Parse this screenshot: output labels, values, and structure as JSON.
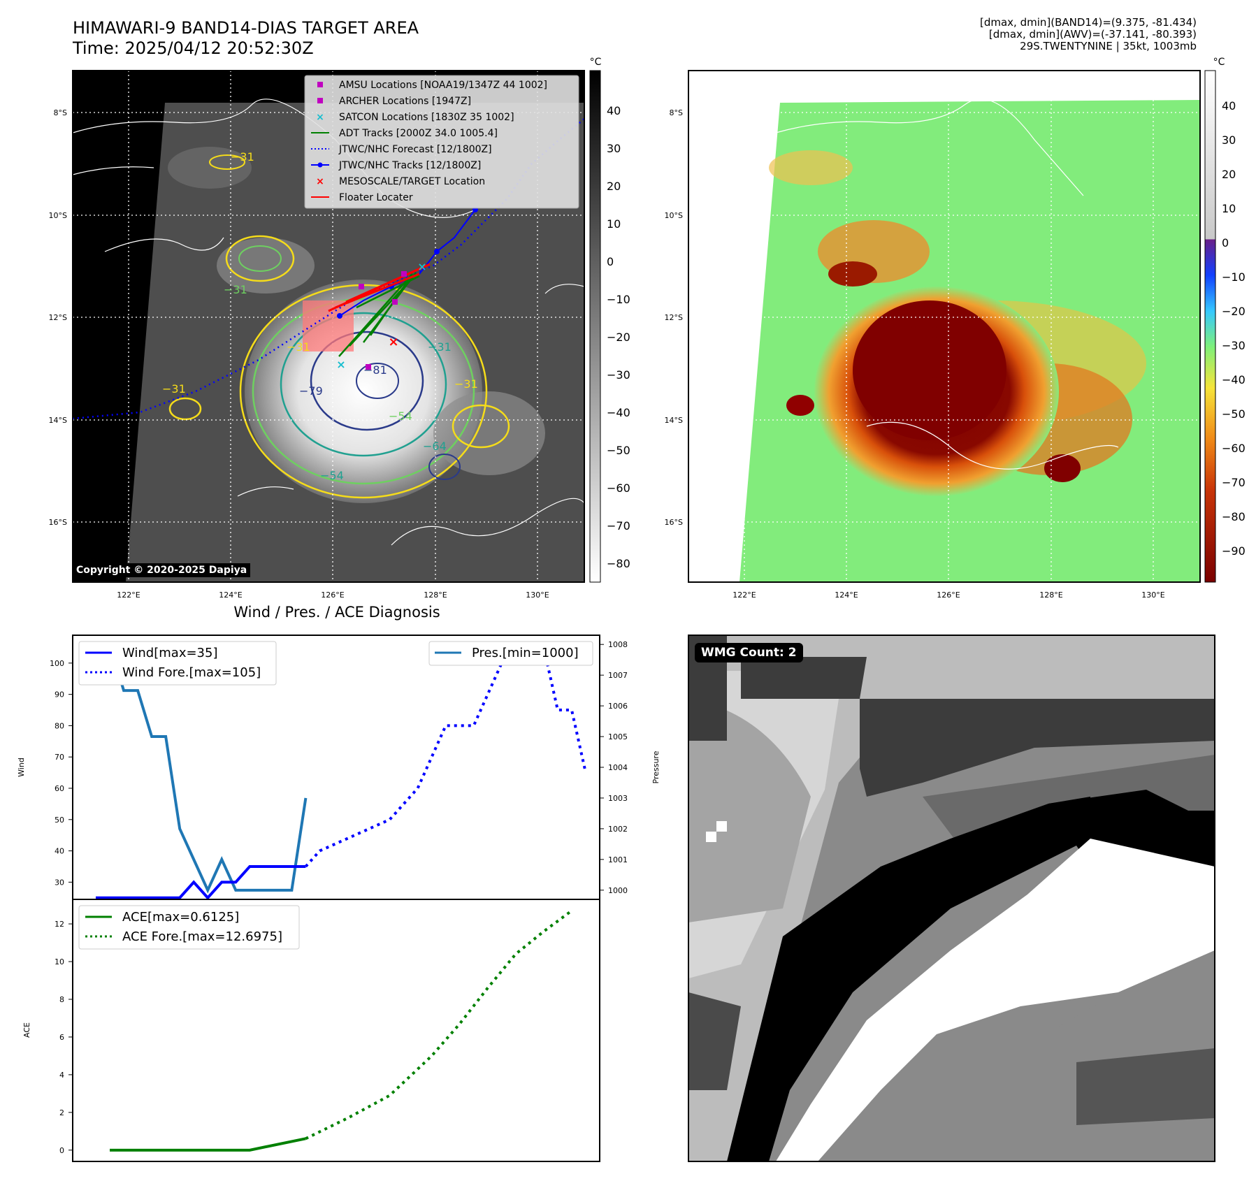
{
  "header": {
    "title_line1": "HIMAWARI-9 BAND14-DIAS TARGET AREA",
    "title_line2": "Time: 2025/04/12 20:52:30Z",
    "info_line1": "[dmax, dmin](BAND14)=(9.375, -81.434)",
    "info_line2": "[dmax, dmin](AWV)=(-37.141, -80.393)",
    "info_line3": "29S.TWENTYNINE | 35kt, 1003mb"
  },
  "colors": {
    "wind": "#0000ff",
    "pressure": "#1f77b4",
    "ace": "#008000",
    "satcon": "#17becf",
    "amsu": "#c000c0",
    "forecast": "#0000ff",
    "target": "#ff0000"
  },
  "map_left": {
    "lat_labels": [
      "8°S",
      "10°S",
      "12°S",
      "14°S",
      "16°S"
    ],
    "lon_labels": [
      "122°E",
      "124°E",
      "126°E",
      "128°E",
      "130°E"
    ],
    "colorbar_unit": "°C",
    "colorbar_ticks": [
      "40",
      "30",
      "20",
      "10",
      "0",
      "−10",
      "−20",
      "−30",
      "−40",
      "−50",
      "−60",
      "−70",
      "−80"
    ],
    "contour_labels": [
      "−31",
      "−31",
      "−31",
      "−31",
      "−31",
      "−54",
      "−64",
      "−79",
      "−81",
      "−31",
      "−54"
    ],
    "legend": [
      {
        "label": "AMSU Locations [NOAA19/1347Z 44 1002]",
        "icon": "square-marker",
        "color": "#c000c0"
      },
      {
        "label": "ARCHER Locations [1947Z]",
        "icon": "square-marker",
        "color": "#c000c0"
      },
      {
        "label": "SATCON Locations [1830Z 35 1002]",
        "icon": "x-marker",
        "color": "#17becf"
      },
      {
        "label": "ADT Tracks [2000Z 34.0 1005.4]",
        "icon": "solid-line",
        "color": "#008000"
      },
      {
        "label": "JTWC/NHC Forecast [12/1800Z]",
        "icon": "dotted-line",
        "color": "#0000ff"
      },
      {
        "label": "JTWC/NHC Tracks [12/1800Z]",
        "icon": "line-dot",
        "color": "#0000ff"
      },
      {
        "label": "MESOSCALE/TARGET Location",
        "icon": "x-marker",
        "color": "#ff0000"
      },
      {
        "label": "Floater Locater",
        "icon": "solid-line",
        "color": "#ff0000"
      }
    ],
    "copyright": "Copyright © 2020-2025 Dapiya"
  },
  "map_right": {
    "lat_labels": [
      "8°S",
      "10°S",
      "12°S",
      "14°S",
      "16°S"
    ],
    "lon_labels": [
      "122°E",
      "124°E",
      "126°E",
      "128°E",
      "130°E"
    ],
    "colorbar_unit": "°C",
    "colorbar_ticks": [
      "40",
      "30",
      "20",
      "10",
      "0",
      "−10",
      "−20",
      "−30",
      "−40",
      "−50",
      "−60",
      "−70",
      "−80",
      "−90"
    ]
  },
  "diagnosis": {
    "title": "Wind / Pres. / ACE Diagnosis",
    "wind_axis_label": "Wind",
    "pressure_axis_label": "Pressure",
    "ace_axis_label": "ACE",
    "wind_legend": [
      "Wind[max=35]",
      "Wind Fore.[max=105]"
    ],
    "pressure_legend": "Pres.[min=1000]",
    "ace_legend": [
      "ACE[max=0.6125]",
      "ACE Fore.[max=12.6975]"
    ]
  },
  "wmg": {
    "label": "WMG Count: 2"
  },
  "chart_data": [
    {
      "type": "line",
      "name": "wind_pressure",
      "x": [
        0,
        1,
        2,
        3,
        4,
        5,
        6,
        7,
        8,
        9,
        10,
        11,
        12,
        13,
        14,
        15
      ],
      "series": [
        {
          "name": "Wind[max=35]",
          "axis": "left",
          "style": "solid",
          "x": [
            0,
            1,
            2,
            3,
            4,
            5,
            6,
            7,
            8,
            9,
            10,
            11,
            12,
            13,
            14,
            15
          ],
          "values": [
            25,
            25,
            25,
            25,
            25,
            25,
            25,
            30,
            25,
            30,
            30,
            35,
            35,
            35,
            35,
            35
          ]
        },
        {
          "name": "Wind Fore.[max=105]",
          "axis": "left",
          "style": "dotted",
          "x": [
            15,
            16,
            17,
            18,
            19,
            20,
            21,
            22,
            23,
            24,
            25,
            26,
            27,
            28,
            29,
            30,
            31,
            32,
            33,
            34,
            35
          ],
          "values": [
            35,
            40,
            42,
            44,
            46,
            48,
            50,
            55,
            60,
            70,
            80,
            80,
            80,
            90,
            100,
            105,
            105,
            105,
            85,
            85,
            65
          ]
        },
        {
          "name": "Pres.[min=1000]",
          "axis": "right",
          "style": "solid",
          "x": [
            1,
            2,
            3,
            4,
            5,
            6,
            7,
            8,
            9,
            10,
            11,
            12,
            13,
            14,
            15
          ],
          "values": [
            1008,
            1006.5,
            1006.5,
            1005,
            1005,
            1002,
            1001,
            1000,
            1001,
            1000,
            1000,
            1000,
            1000,
            1000,
            1003
          ]
        }
      ],
      "ylim_left": [
        24.5,
        108.9
      ],
      "ylim_right": [
        999.7,
        1008.3
      ],
      "yticks_left": [
        30,
        40,
        50,
        60,
        70,
        80,
        90,
        100
      ],
      "yticks_right": [
        1000,
        1001,
        1002,
        1003,
        1004,
        1005,
        1006,
        1007,
        1008
      ]
    },
    {
      "type": "line",
      "name": "ace",
      "series": [
        {
          "name": "ACE[max=0.6125]",
          "style": "solid",
          "x": [
            1,
            5,
            9,
            11,
            15
          ],
          "values": [
            0,
            0,
            0,
            0,
            0.6125
          ]
        },
        {
          "name": "ACE Fore.[max=12.6975]",
          "style": "dotted",
          "x": [
            15,
            18,
            21,
            24,
            26,
            28,
            30,
            32,
            34
          ],
          "values": [
            0.6125,
            1.7,
            2.9,
            5.0,
            6.7,
            8.6,
            10.4,
            11.6,
            12.6975
          ]
        }
      ],
      "ylim": [
        -0.6,
        13.3
      ],
      "yticks": [
        0,
        2,
        4,
        6,
        8,
        10,
        12
      ]
    }
  ]
}
